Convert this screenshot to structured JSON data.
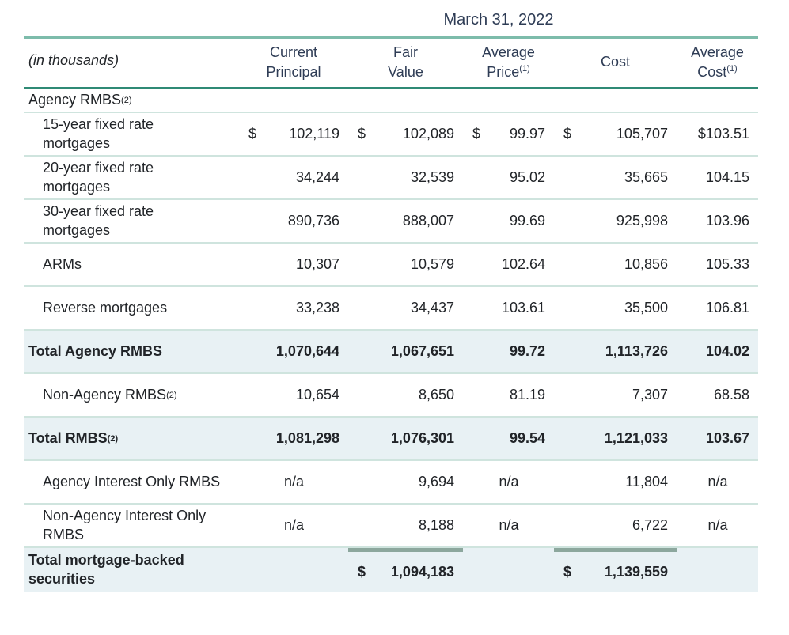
{
  "title": "March 31, 2022",
  "corner_label": "(in thousands)",
  "columns": [
    {
      "line1": "Current",
      "line2": "Principal",
      "sup": ""
    },
    {
      "line1": "Fair",
      "line2": "Value",
      "sup": ""
    },
    {
      "line1": "Average",
      "line2": "Price",
      "sup": "(1)"
    },
    {
      "line1": "Cost",
      "line2": "",
      "sup": ""
    },
    {
      "line1": "Average",
      "line2": "Cost",
      "sup": "(1)"
    }
  ],
  "rows": [
    {
      "label": "Agency RMBS",
      "sup": "(2)",
      "section": true,
      "cells": []
    },
    {
      "label": "15-year fixed rate mortgages",
      "indent": true,
      "cells": [
        {
          "d": "$",
          "v": "102,119"
        },
        {
          "d": "$",
          "v": "102,089"
        },
        {
          "d": "$",
          "v": "99.97"
        },
        {
          "d": "$",
          "v": "105,707"
        },
        {
          "v": "$103.51"
        }
      ]
    },
    {
      "label": "20-year fixed rate mortgages",
      "indent": true,
      "cells": [
        {
          "v": "34,244"
        },
        {
          "v": "32,539"
        },
        {
          "v": "95.02"
        },
        {
          "v": "35,665"
        },
        {
          "v": "104.15"
        }
      ]
    },
    {
      "label": "30-year fixed rate mortgages",
      "indent": true,
      "cells": [
        {
          "v": "890,736"
        },
        {
          "v": "888,007"
        },
        {
          "v": "99.69"
        },
        {
          "v": "925,998"
        },
        {
          "v": "103.96"
        }
      ]
    },
    {
      "label": "ARMs",
      "indent": true,
      "cells": [
        {
          "v": "10,307"
        },
        {
          "v": "10,579"
        },
        {
          "v": "102.64"
        },
        {
          "v": "10,856"
        },
        {
          "v": "105.33"
        }
      ]
    },
    {
      "label": "Reverse mortgages",
      "indent": true,
      "cells": [
        {
          "v": "33,238"
        },
        {
          "v": "34,437"
        },
        {
          "v": "103.61"
        },
        {
          "v": "35,500"
        },
        {
          "v": "106.81"
        }
      ]
    },
    {
      "label": "Total Agency RMBS",
      "highlight": true,
      "cells": [
        {
          "v": "1,070,644"
        },
        {
          "v": "1,067,651"
        },
        {
          "v": "99.72"
        },
        {
          "v": "1,113,726"
        },
        {
          "v": "104.02"
        }
      ]
    },
    {
      "label": "Non-Agency RMBS",
      "sup": "(2)",
      "indent": true,
      "cells": [
        {
          "v": "10,654"
        },
        {
          "v": "8,650"
        },
        {
          "v": "81.19"
        },
        {
          "v": "7,307"
        },
        {
          "v": "68.58"
        }
      ]
    },
    {
      "label": "Total RMBS",
      "sup": "(2)",
      "highlight": true,
      "cells": [
        {
          "v": "1,081,298"
        },
        {
          "v": "1,076,301"
        },
        {
          "v": "99.54"
        },
        {
          "v": "1,121,033"
        },
        {
          "v": "103.67"
        }
      ]
    },
    {
      "label": "Agency Interest Only RMBS",
      "indent": true,
      "cells": [
        {
          "v": "n/a",
          "center": true
        },
        {
          "v": "9,694"
        },
        {
          "v": "n/a",
          "center": true
        },
        {
          "v": "11,804"
        },
        {
          "v": "n/a",
          "center": true
        }
      ]
    },
    {
      "label": "Non-Agency Interest Only RMBS",
      "indent": true,
      "cells": [
        {
          "v": "n/a",
          "center": true
        },
        {
          "v": "8,188"
        },
        {
          "v": "n/a",
          "center": true
        },
        {
          "v": "6,722"
        },
        {
          "v": "n/a",
          "center": true
        }
      ]
    },
    {
      "label": "Total mortgage-backed securities",
      "highlight": true,
      "last": true,
      "cells": [
        {
          "v": ""
        },
        {
          "d": "$",
          "v": "1,094,183",
          "bar": true
        },
        {
          "v": ""
        },
        {
          "d": "$",
          "v": "1,139,559",
          "bar": true
        },
        {
          "v": ""
        }
      ]
    }
  ],
  "colors": {
    "top_rule": "#7dbcab",
    "header_rule": "#2f8a75",
    "row_rule": "#cfe4de",
    "highlight_bg": "#e8f1f4",
    "subtotal_rule": "#8ca79d",
    "header_text": "#2e3c55",
    "body_text": "#212428"
  }
}
